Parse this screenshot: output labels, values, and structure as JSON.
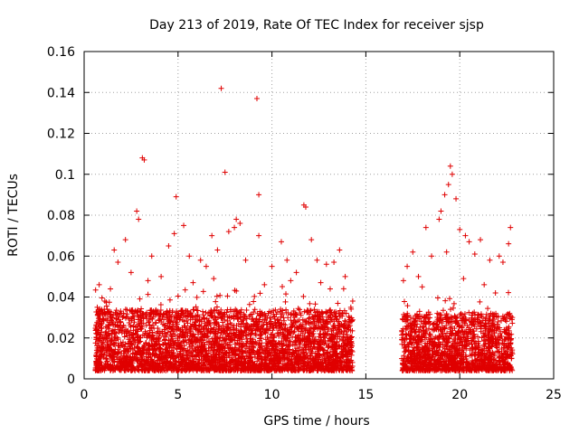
{
  "chart_data": {
    "type": "scatter",
    "title": "Day 213 of 2019, Rate Of TEC Index for receiver sjsp",
    "xlabel": "GPS time / hours",
    "ylabel": "ROTI / TECUs",
    "xlim": [
      0,
      25
    ],
    "ylim": [
      0,
      0.16
    ],
    "x_ticks": [
      0,
      5,
      10,
      15,
      20,
      25
    ],
    "x_tick_labels": [
      "0",
      "5",
      "10",
      "15",
      "20",
      "25"
    ],
    "y_ticks": [
      0,
      0.02,
      0.04,
      0.06,
      0.08,
      0.1,
      0.12,
      0.14,
      0.16
    ],
    "y_tick_labels": [
      "0",
      "0.02",
      "0.04",
      "0.06",
      "0.08",
      "0.1",
      "0.12",
      "0.14",
      "0.16"
    ],
    "grid": true,
    "marker": "+",
    "color": "#e00000",
    "series": [
      {
        "name": "ROTI",
        "points": [
          [
            3.1,
            0.108
          ],
          [
            3.2,
            0.107
          ],
          [
            4.9,
            0.089
          ],
          [
            7.3,
            0.142
          ],
          [
            7.5,
            0.101
          ],
          [
            9.2,
            0.137
          ],
          [
            9.3,
            0.09
          ],
          [
            11.7,
            0.085
          ],
          [
            11.8,
            0.084
          ],
          [
            19.5,
            0.104
          ],
          [
            19.6,
            0.1
          ],
          [
            19.4,
            0.095
          ],
          [
            19.2,
            0.09
          ],
          [
            19.8,
            0.088
          ],
          [
            2.8,
            0.082
          ],
          [
            2.9,
            0.078
          ],
          [
            5.3,
            0.075
          ],
          [
            8.1,
            0.078
          ],
          [
            8.3,
            0.076
          ],
          [
            8.0,
            0.074
          ],
          [
            6.8,
            0.07
          ],
          [
            7.7,
            0.072
          ],
          [
            9.3,
            0.07
          ],
          [
            10.5,
            0.067
          ],
          [
            12.1,
            0.068
          ],
          [
            13.6,
            0.063
          ],
          [
            18.2,
            0.074
          ],
          [
            18.9,
            0.078
          ],
          [
            19.0,
            0.082
          ],
          [
            20.0,
            0.073
          ],
          [
            20.3,
            0.07
          ],
          [
            20.5,
            0.067
          ],
          [
            21.1,
            0.068
          ],
          [
            22.7,
            0.074
          ],
          [
            22.1,
            0.06
          ],
          [
            22.6,
            0.066
          ],
          [
            17.5,
            0.062
          ],
          [
            17.2,
            0.055
          ],
          [
            1.6,
            0.063
          ],
          [
            1.8,
            0.057
          ],
          [
            2.2,
            0.068
          ],
          [
            3.6,
            0.06
          ],
          [
            4.5,
            0.065
          ],
          [
            4.8,
            0.071
          ],
          [
            5.6,
            0.06
          ],
          [
            6.2,
            0.058
          ],
          [
            6.5,
            0.055
          ],
          [
            7.1,
            0.063
          ],
          [
            8.6,
            0.058
          ],
          [
            10.0,
            0.055
          ],
          [
            10.8,
            0.058
          ],
          [
            11.3,
            0.052
          ],
          [
            12.4,
            0.058
          ],
          [
            12.9,
            0.056
          ],
          [
            13.3,
            0.057
          ],
          [
            13.9,
            0.05
          ],
          [
            18.5,
            0.06
          ],
          [
            19.3,
            0.062
          ],
          [
            20.8,
            0.061
          ],
          [
            21.6,
            0.058
          ],
          [
            22.3,
            0.057
          ],
          [
            17.8,
            0.05
          ],
          [
            0.7,
            0.035
          ],
          [
            0.8,
            0.046
          ],
          [
            1.1,
            0.038
          ],
          [
            1.4,
            0.044
          ],
          [
            14.2,
            0.035
          ],
          [
            14.3,
            0.038
          ],
          [
            22.8,
            0.03
          ],
          [
            17.0,
            0.048
          ],
          [
            2.5,
            0.052
          ],
          [
            3.4,
            0.048
          ],
          [
            4.1,
            0.05
          ],
          [
            5.8,
            0.047
          ],
          [
            6.9,
            0.049
          ],
          [
            9.6,
            0.046
          ],
          [
            11.0,
            0.048
          ],
          [
            12.6,
            0.047
          ],
          [
            13.1,
            0.044
          ],
          [
            18.0,
            0.045
          ],
          [
            20.2,
            0.049
          ],
          [
            21.3,
            0.046
          ],
          [
            21.9,
            0.042
          ]
        ]
      }
    ],
    "density_bands": [
      {
        "x_from": 0.6,
        "x_to": 14.3,
        "y_from": 0.004,
        "y_to": 0.034
      },
      {
        "x_from": 16.9,
        "x_to": 22.8,
        "y_from": 0.004,
        "y_to": 0.032
      }
    ]
  }
}
